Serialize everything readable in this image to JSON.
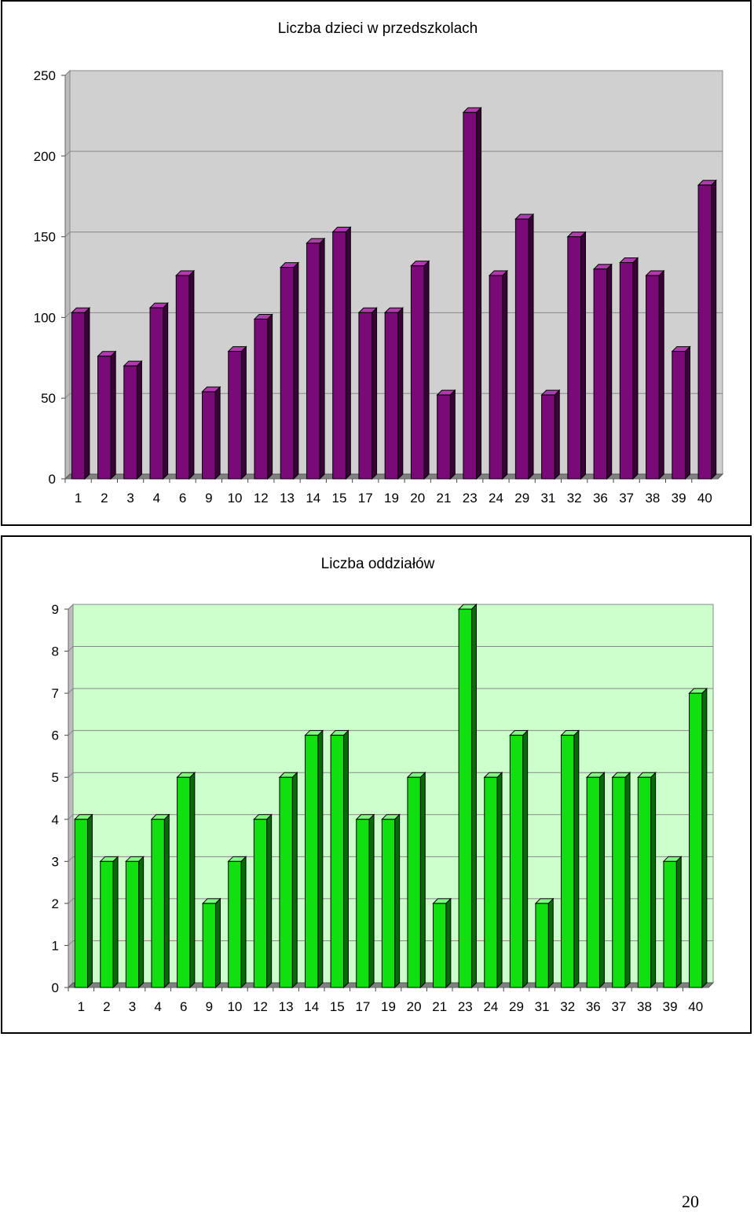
{
  "chart_data": [
    {
      "type": "bar",
      "title": "Liczba dzieci w przedszkolach",
      "categories": [
        "1",
        "2",
        "3",
        "4",
        "6",
        "9",
        "10",
        "12",
        "13",
        "14",
        "15",
        "17",
        "19",
        "20",
        "21",
        "23",
        "24",
        "29",
        "31",
        "32",
        "36",
        "37",
        "38",
        "39",
        "40"
      ],
      "values": [
        103,
        76,
        70,
        106,
        126,
        54,
        79,
        99,
        131,
        146,
        153,
        103,
        103,
        132,
        52,
        227,
        126,
        161,
        52,
        150,
        130,
        134,
        126,
        79,
        182
      ],
      "ylim": [
        0,
        250
      ],
      "yticks": [
        "0",
        "50",
        "100",
        "150",
        "200",
        "250"
      ],
      "grid": true,
      "colors": {
        "bar": "#7a0a78",
        "bar_side": "#3a0038",
        "bar_top": "#b03aae",
        "wall": "#d0d0d0",
        "floor": "#808080"
      }
    },
    {
      "type": "bar",
      "title": "Liczba oddziałów",
      "categories": [
        "1",
        "2",
        "3",
        "4",
        "6",
        "9",
        "10",
        "12",
        "13",
        "14",
        "15",
        "17",
        "19",
        "20",
        "21",
        "23",
        "24",
        "29",
        "31",
        "32",
        "36",
        "37",
        "38",
        "39",
        "40"
      ],
      "values": [
        4,
        3,
        3,
        4,
        5,
        2,
        3,
        4,
        5,
        6,
        6,
        4,
        4,
        5,
        2,
        9,
        5,
        6,
        2,
        6,
        5,
        5,
        5,
        3,
        7
      ],
      "ylim": [
        0,
        9
      ],
      "yticks": [
        "0",
        "1",
        "2",
        "3",
        "4",
        "5",
        "6",
        "7",
        "8",
        "9"
      ],
      "grid": true,
      "colors": {
        "bar": "#10e010",
        "bar_side": "#056b05",
        "bar_top": "#7cff7c",
        "wall": "#ccffcc",
        "floor": "#808080"
      }
    }
  ],
  "page": {
    "number": "20"
  }
}
